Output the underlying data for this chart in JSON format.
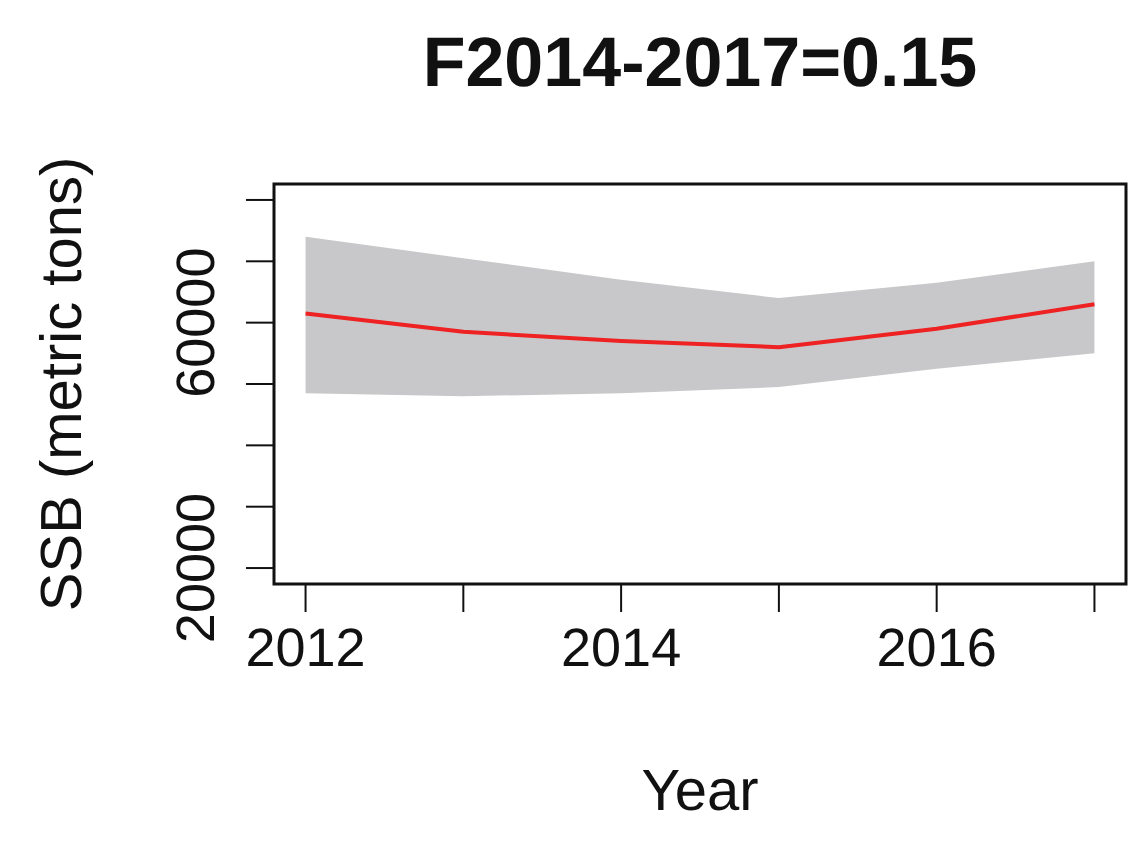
{
  "chart_data": {
    "type": "line",
    "title": "F2014-2017=0.15",
    "xlabel": "Year",
    "ylabel": "SSB (metric tons)",
    "x": [
      2012,
      2013,
      2014,
      2015,
      2016,
      2017
    ],
    "series": [
      {
        "color": "#ee2222",
        "values": [
          61500,
          58500,
          57000,
          56000,
          59000,
          63000
        ],
        "lower": [
          48500,
          48000,
          48500,
          49500,
          52500,
          55000
        ],
        "upper": [
          74000,
          70500,
          67000,
          64000,
          66500,
          70000
        ]
      }
    ],
    "xlim": [
      2011.8,
      2017.2
    ],
    "xticks": [
      2012,
      {
        "value": 2013,
        "label": null
      },
      2014,
      {
        "value": 2015,
        "label": null
      },
      2016,
      {
        "value": 2017,
        "label": null
      }
    ],
    "ylim": [
      17400,
      82600
    ],
    "yticks": [
      20000,
      {
        "value": 30000,
        "label": null
      },
      {
        "value": 40000,
        "label": null
      },
      {
        "value": 50000,
        "label": null
      },
      60000,
      {
        "value": 70000,
        "label": null
      },
      {
        "value": 80000,
        "label": null
      }
    ],
    "grid": false,
    "marker": "none",
    "line_style": "solid"
  }
}
